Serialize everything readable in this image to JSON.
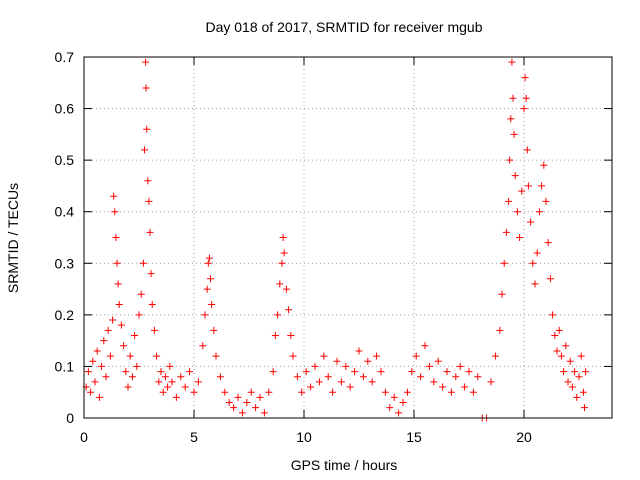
{
  "chart_data": {
    "type": "scatter",
    "title": "Day 018 of 2017, SRMTID for receiver mgub",
    "xlabel": "GPS time / hours",
    "ylabel": "SRMTID / TECUs",
    "xlim": [
      0,
      24
    ],
    "ylim": [
      0,
      0.7
    ],
    "xticks": [
      0,
      5,
      10,
      15,
      20
    ],
    "yticks": [
      0,
      0.1,
      0.2,
      0.3,
      0.4,
      0.5,
      0.6,
      0.7
    ],
    "xtick_labels": [
      "0",
      "5",
      "10",
      "15",
      "20"
    ],
    "ytick_labels": [
      "0",
      "0.1",
      "0.2",
      "0.3",
      "0.4",
      "0.5",
      "0.6",
      "0.7"
    ],
    "grid": true,
    "marker": "+",
    "marker_color": "#ff0000",
    "series": [
      {
        "name": "SRMTID",
        "points": [
          [
            0.1,
            0.06
          ],
          [
            0.2,
            0.09
          ],
          [
            0.3,
            0.05
          ],
          [
            0.4,
            0.11
          ],
          [
            0.5,
            0.07
          ],
          [
            0.6,
            0.13
          ],
          [
            0.7,
            0.04
          ],
          [
            0.8,
            0.1
          ],
          [
            0.9,
            0.15
          ],
          [
            1.0,
            0.08
          ],
          [
            1.1,
            0.17
          ],
          [
            1.2,
            0.12
          ],
          [
            1.3,
            0.19
          ],
          [
            1.35,
            0.43
          ],
          [
            1.4,
            0.4
          ],
          [
            1.45,
            0.35
          ],
          [
            1.5,
            0.3
          ],
          [
            1.55,
            0.26
          ],
          [
            1.6,
            0.22
          ],
          [
            1.7,
            0.18
          ],
          [
            1.8,
            0.14
          ],
          [
            1.9,
            0.09
          ],
          [
            2.0,
            0.06
          ],
          [
            2.1,
            0.12
          ],
          [
            2.2,
            0.08
          ],
          [
            2.3,
            0.16
          ],
          [
            2.4,
            0.1
          ],
          [
            2.5,
            0.2
          ],
          [
            2.6,
            0.24
          ],
          [
            2.7,
            0.3
          ],
          [
            2.75,
            0.52
          ],
          [
            2.8,
            0.69
          ],
          [
            2.82,
            0.64
          ],
          [
            2.85,
            0.56
          ],
          [
            2.9,
            0.46
          ],
          [
            2.95,
            0.42
          ],
          [
            3.0,
            0.36
          ],
          [
            3.05,
            0.28
          ],
          [
            3.1,
            0.22
          ],
          [
            3.2,
            0.17
          ],
          [
            3.3,
            0.12
          ],
          [
            3.4,
            0.07
          ],
          [
            3.5,
            0.09
          ],
          [
            3.6,
            0.05
          ],
          [
            3.7,
            0.08
          ],
          [
            3.8,
            0.06
          ],
          [
            3.9,
            0.1
          ],
          [
            4.0,
            0.07
          ],
          [
            4.2,
            0.04
          ],
          [
            4.4,
            0.08
          ],
          [
            4.6,
            0.06
          ],
          [
            4.8,
            0.09
          ],
          [
            5.0,
            0.05
          ],
          [
            5.2,
            0.07
          ],
          [
            5.4,
            0.14
          ],
          [
            5.5,
            0.2
          ],
          [
            5.6,
            0.25
          ],
          [
            5.65,
            0.3
          ],
          [
            5.7,
            0.31
          ],
          [
            5.75,
            0.27
          ],
          [
            5.8,
            0.22
          ],
          [
            5.9,
            0.17
          ],
          [
            6.0,
            0.12
          ],
          [
            6.2,
            0.08
          ],
          [
            6.4,
            0.05
          ],
          [
            6.6,
            0.03
          ],
          [
            6.8,
            0.02
          ],
          [
            7.0,
            0.04
          ],
          [
            7.2,
            0.01
          ],
          [
            7.4,
            0.03
          ],
          [
            7.6,
            0.05
          ],
          [
            7.8,
            0.02
          ],
          [
            8.0,
            0.04
          ],
          [
            8.2,
            0.01
          ],
          [
            8.4,
            0.05
          ],
          [
            8.6,
            0.09
          ],
          [
            8.7,
            0.16
          ],
          [
            8.8,
            0.2
          ],
          [
            8.9,
            0.26
          ],
          [
            9.0,
            0.3
          ],
          [
            9.05,
            0.35
          ],
          [
            9.1,
            0.32
          ],
          [
            9.2,
            0.25
          ],
          [
            9.3,
            0.21
          ],
          [
            9.4,
            0.16
          ],
          [
            9.5,
            0.12
          ],
          [
            9.7,
            0.08
          ],
          [
            9.9,
            0.05
          ],
          [
            10.1,
            0.09
          ],
          [
            10.3,
            0.06
          ],
          [
            10.5,
            0.1
          ],
          [
            10.7,
            0.07
          ],
          [
            10.9,
            0.12
          ],
          [
            11.1,
            0.08
          ],
          [
            11.3,
            0.05
          ],
          [
            11.5,
            0.11
          ],
          [
            11.7,
            0.07
          ],
          [
            11.9,
            0.1
          ],
          [
            12.1,
            0.06
          ],
          [
            12.3,
            0.09
          ],
          [
            12.5,
            0.13
          ],
          [
            12.7,
            0.08
          ],
          [
            12.9,
            0.11
          ],
          [
            13.1,
            0.07
          ],
          [
            13.3,
            0.12
          ],
          [
            13.5,
            0.09
          ],
          [
            13.7,
            0.05
          ],
          [
            13.9,
            0.02
          ],
          [
            14.1,
            0.04
          ],
          [
            14.3,
            0.01
          ],
          [
            14.5,
            0.03
          ],
          [
            14.7,
            0.05
          ],
          [
            14.9,
            0.09
          ],
          [
            15.1,
            0.12
          ],
          [
            15.3,
            0.08
          ],
          [
            15.5,
            0.14
          ],
          [
            15.7,
            0.1
          ],
          [
            15.9,
            0.07
          ],
          [
            16.1,
            0.11
          ],
          [
            16.3,
            0.06
          ],
          [
            16.5,
            0.09
          ],
          [
            16.7,
            0.05
          ],
          [
            16.9,
            0.08
          ],
          [
            17.1,
            0.1
          ],
          [
            17.3,
            0.06
          ],
          [
            17.5,
            0.09
          ],
          [
            17.7,
            0.05
          ],
          [
            17.9,
            0.08
          ],
          [
            18.1,
            0.0
          ],
          [
            18.3,
            0.0
          ],
          [
            18.5,
            0.07
          ],
          [
            18.7,
            0.12
          ],
          [
            18.9,
            0.17
          ],
          [
            19.0,
            0.24
          ],
          [
            19.1,
            0.3
          ],
          [
            19.2,
            0.36
          ],
          [
            19.3,
            0.42
          ],
          [
            19.35,
            0.5
          ],
          [
            19.4,
            0.58
          ],
          [
            19.45,
            0.69
          ],
          [
            19.5,
            0.62
          ],
          [
            19.55,
            0.55
          ],
          [
            19.6,
            0.47
          ],
          [
            19.7,
            0.4
          ],
          [
            19.8,
            0.35
          ],
          [
            19.9,
            0.44
          ],
          [
            20.0,
            0.6
          ],
          [
            20.05,
            0.66
          ],
          [
            20.1,
            0.62
          ],
          [
            20.15,
            0.52
          ],
          [
            20.2,
            0.45
          ],
          [
            20.3,
            0.38
          ],
          [
            20.4,
            0.3
          ],
          [
            20.5,
            0.26
          ],
          [
            20.6,
            0.32
          ],
          [
            20.7,
            0.4
          ],
          [
            20.8,
            0.45
          ],
          [
            20.9,
            0.49
          ],
          [
            21.0,
            0.42
          ],
          [
            21.1,
            0.34
          ],
          [
            21.2,
            0.27
          ],
          [
            21.3,
            0.2
          ],
          [
            21.4,
            0.16
          ],
          [
            21.5,
            0.13
          ],
          [
            21.6,
            0.17
          ],
          [
            21.7,
            0.12
          ],
          [
            21.8,
            0.09
          ],
          [
            21.9,
            0.14
          ],
          [
            22.0,
            0.07
          ],
          [
            22.1,
            0.11
          ],
          [
            22.2,
            0.06
          ],
          [
            22.3,
            0.09
          ],
          [
            22.4,
            0.04
          ],
          [
            22.5,
            0.08
          ],
          [
            22.6,
            0.12
          ],
          [
            22.7,
            0.05
          ],
          [
            22.75,
            0.02
          ],
          [
            22.8,
            0.09
          ]
        ]
      }
    ]
  }
}
